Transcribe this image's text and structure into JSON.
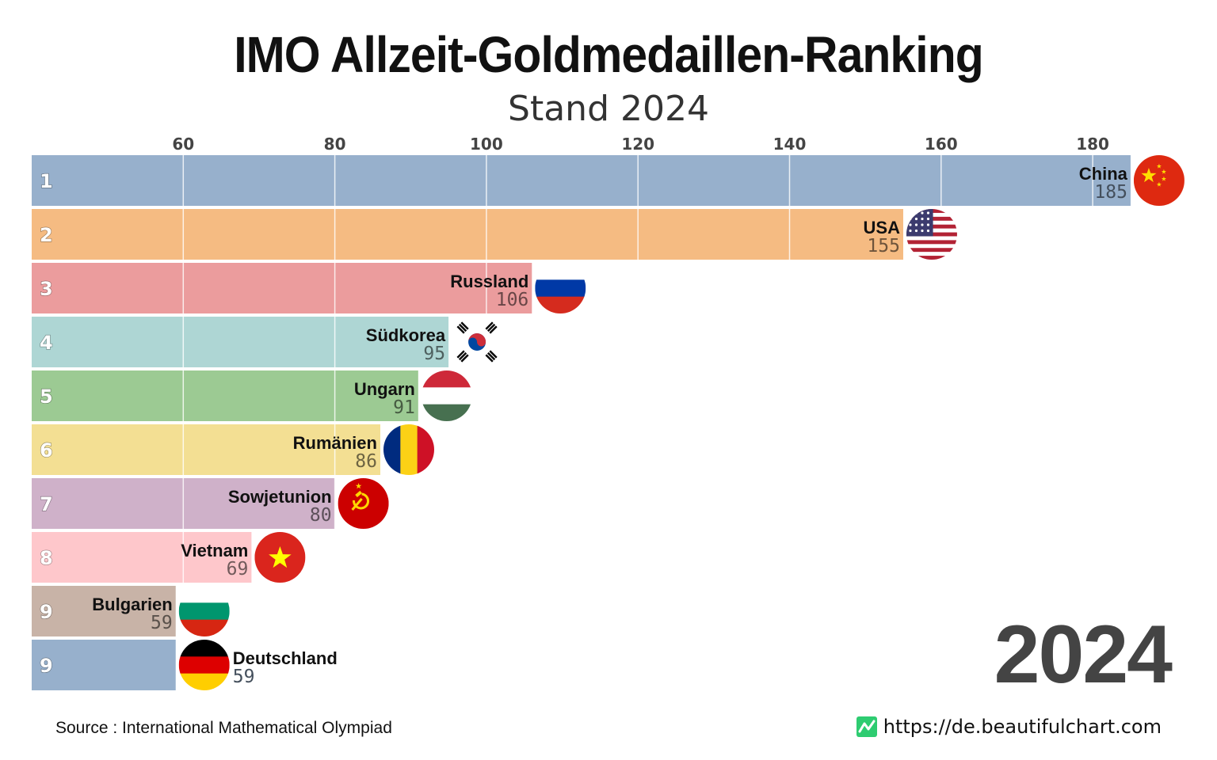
{
  "header": {
    "title": "IMO Allzeit-Goldmedaillen-Ranking",
    "subtitle": "Stand 2024"
  },
  "year_label": "2024",
  "footer": {
    "source": "Source : International Mathematical Olympiad",
    "website": "https://de.beautifulchart.com",
    "website_icon": "chart-line-icon",
    "website_icon_color": "#2ecc71"
  },
  "chart_data": {
    "type": "bar",
    "orientation": "horizontal",
    "xlim": [
      40,
      190
    ],
    "x_ticks": [
      60,
      80,
      100,
      120,
      140,
      160,
      180
    ],
    "axis_position": "top",
    "grid": true,
    "bars": [
      {
        "rank": "1",
        "name": "China",
        "value": 185,
        "color": "#97b0cc",
        "flag": "flag-china-icon"
      },
      {
        "rank": "2",
        "name": "USA",
        "value": 155,
        "color": "#f5bb82",
        "flag": "flag-usa-icon"
      },
      {
        "rank": "3",
        "name": "Russland",
        "value": 106,
        "color": "#eb9c9d",
        "flag": "flag-russia-icon"
      },
      {
        "rank": "4",
        "name": "Südkorea",
        "value": 95,
        "color": "#aed6d4",
        "flag": "flag-south-korea-icon"
      },
      {
        "rank": "5",
        "name": "Ungarn",
        "value": 91,
        "color": "#9cca93",
        "flag": "flag-hungary-icon"
      },
      {
        "rank": "6",
        "name": "Rumänien",
        "value": 86,
        "color": "#f3df93",
        "flag": "flag-romania-icon"
      },
      {
        "rank": "7",
        "name": "Sowjetunion",
        "value": 80,
        "color": "#cfb1c9",
        "flag": "flag-soviet-union-icon"
      },
      {
        "rank": "8",
        "name": "Vietnam",
        "value": 69,
        "color": "#fec7cb",
        "flag": "flag-vietnam-icon"
      },
      {
        "rank": "9",
        "name": "Bulgarien",
        "value": 59,
        "color": "#c8b3a7",
        "flag": "flag-bulgaria-icon"
      },
      {
        "rank": "9",
        "name": "Deutschland",
        "value": 59,
        "color": "#97b0cc",
        "flag": "flag-germany-icon"
      }
    ]
  }
}
